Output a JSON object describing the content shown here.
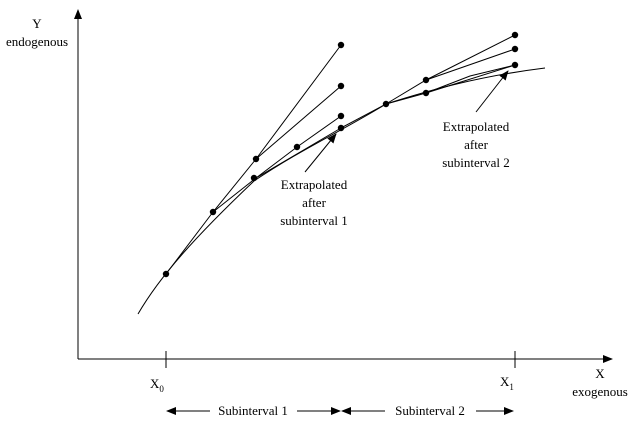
{
  "axes": {
    "y_label": {
      "letter": "Y",
      "word": "endogenous"
    },
    "x_label": {
      "letter": "X",
      "word": "exogenous"
    },
    "x0": {
      "base": "X",
      "sub": "0"
    },
    "x1": {
      "base": "X",
      "sub": "1"
    }
  },
  "annotations": {
    "interval_1": [
      "Extrapolated",
      "after",
      "subinterval 1"
    ],
    "interval_2": [
      "Extrapolated",
      "after",
      "subinterval 2"
    ]
  },
  "subintervals": {
    "first": "Subinterval 1",
    "second": "Subinterval 2"
  },
  "colors": {
    "ink": "#000000",
    "background": "#ffffff"
  }
}
